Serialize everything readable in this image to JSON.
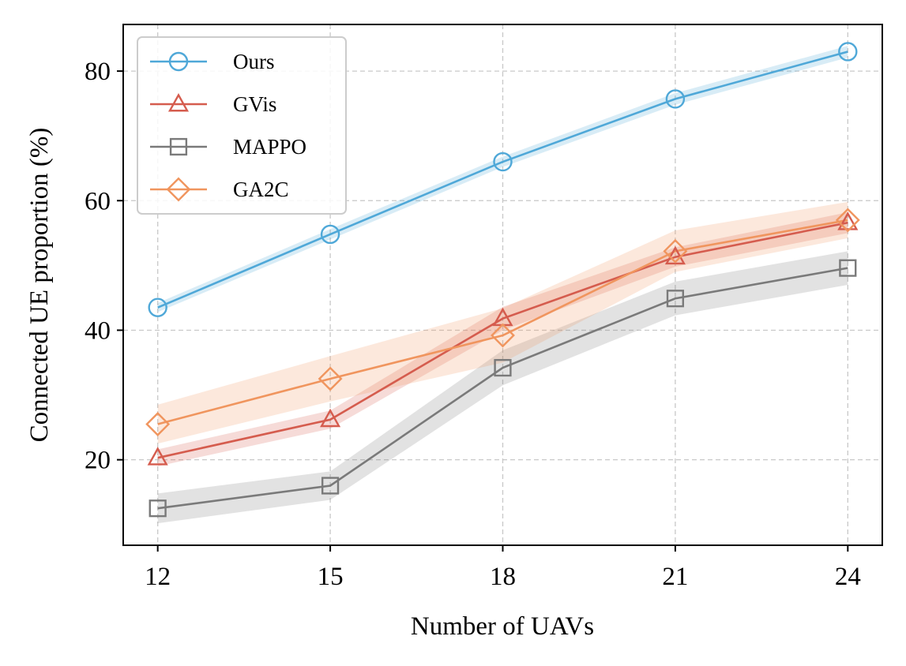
{
  "chart_data": {
    "type": "line",
    "xlabel": "Number of UAVs",
    "ylabel": "Connected UE proportion (%)",
    "x": [
      12,
      15,
      18,
      21,
      24
    ],
    "xticks": [
      "12",
      "15",
      "18",
      "21",
      "24"
    ],
    "yticks": [
      20,
      40,
      60,
      80
    ],
    "ytick_labels": [
      "20",
      "40",
      "60",
      "80"
    ],
    "xlim": [
      11.4,
      24.6
    ],
    "ylim": [
      6.8,
      87.2
    ],
    "grid": true,
    "legend_position": "upper-left",
    "series": [
      {
        "name": "Ours",
        "marker": "circle",
        "color": "#4fa8d8",
        "values": [
          43.5,
          54.8,
          66.0,
          75.7,
          83.0
        ],
        "lower": [
          42.8,
          54.0,
          65.2,
          74.8,
          82.1
        ],
        "upper": [
          44.2,
          55.6,
          66.8,
          76.6,
          83.9
        ]
      },
      {
        "name": "GVis",
        "marker": "triangle",
        "color": "#d55c4e",
        "values": [
          20.3,
          26.2,
          41.8,
          51.3,
          56.6
        ],
        "lower": [
          19.0,
          24.8,
          40.0,
          49.8,
          55.0
        ],
        "upper": [
          21.6,
          27.6,
          43.6,
          52.8,
          58.2
        ]
      },
      {
        "name": "MAPPO",
        "marker": "square",
        "color": "#7a7a7a",
        "values": [
          12.5,
          16.0,
          34.2,
          44.9,
          49.6
        ],
        "lower": [
          10.2,
          13.8,
          31.5,
          42.3,
          47.0
        ],
        "upper": [
          14.8,
          18.2,
          36.9,
          47.5,
          52.2
        ]
      },
      {
        "name": "GA2C",
        "marker": "diamond",
        "color": "#f0955e",
        "values": [
          25.5,
          32.5,
          39.2,
          52.2,
          57.0
        ],
        "lower": [
          22.5,
          29.0,
          35.0,
          49.0,
          54.2
        ],
        "upper": [
          28.5,
          36.0,
          43.4,
          55.4,
          59.8
        ]
      }
    ]
  }
}
